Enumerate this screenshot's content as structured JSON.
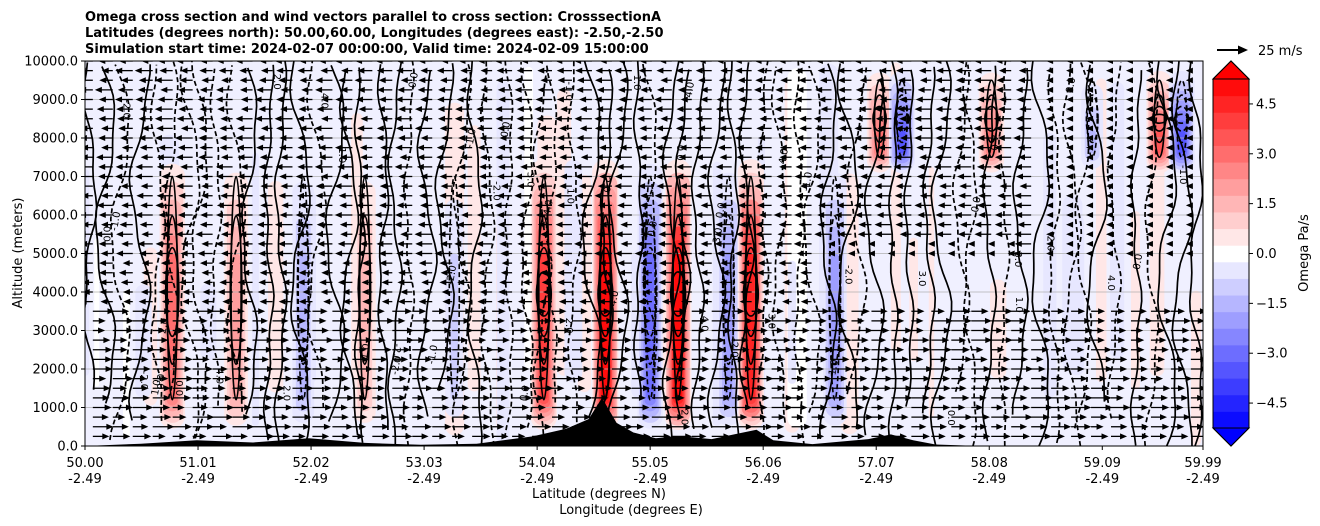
{
  "chart_data": {
    "type": "contour",
    "title_lines": [
      "Omega cross section and wind vectors parallel to cross section: CrosssectionA",
      "Latitudes (degrees north): 50.00,60.00, Longitudes (degrees east): -2.50,-2.50",
      "Simulation start time: 2024-02-07 00:00:00, Valid time: 2024-02-09 15:00:00"
    ],
    "ylabel": "Altitude (meters)",
    "xlabel_lat": "Latitude (degrees N)",
    "xlabel_lon": "Longitude (degrees E)",
    "ylim": [
      0,
      10000
    ],
    "yticks": [
      "0.0",
      "1000.0",
      "2000.0",
      "3000.0",
      "4000.0",
      "5000.0",
      "6000.0",
      "7000.0",
      "8000.0",
      "9000.0",
      "10000.0"
    ],
    "xlim": [
      50.0,
      59.99
    ],
    "xticks": [
      {
        "lat": "50.00",
        "lon": "-2.49"
      },
      {
        "lat": "51.01",
        "lon": "-2.49"
      },
      {
        "lat": "52.02",
        "lon": "-2.49"
      },
      {
        "lat": "53.03",
        "lon": "-2.49"
      },
      {
        "lat": "54.04",
        "lon": "-2.49"
      },
      {
        "lat": "55.05",
        "lon": "-2.49"
      },
      {
        "lat": "56.06",
        "lon": "-2.49"
      },
      {
        "lat": "57.07",
        "lon": "-2.49"
      },
      {
        "lat": "58.08",
        "lon": "-2.49"
      },
      {
        "lat": "59.09",
        "lon": "-2.49"
      },
      {
        "lat": "59.99",
        "lon": "-2.49"
      }
    ],
    "grid": "horizontal",
    "colorbar": {
      "label": "Omega Pa/s",
      "ticks": [
        "4.5",
        "3.0",
        "1.5",
        "0.0",
        "−1.5",
        "−3.0",
        "−4.5"
      ],
      "range": [
        -5.25,
        5.25
      ],
      "levels": 21,
      "extend": "both",
      "cmap": "bwr"
    },
    "quiver_key": {
      "label": "25 m/s"
    },
    "contour_labels": [
      "0.0",
      "1.0",
      "-1.0",
      "2.0",
      "-2.0",
      "3.0",
      "4.0"
    ],
    "features": [
      {
        "lat": 50.78,
        "kind": "down",
        "max": 3.0
      },
      {
        "lat": 51.35,
        "kind": "down",
        "max": 2.0
      },
      {
        "lat": 51.95,
        "kind": "up",
        "max": -1.5
      },
      {
        "lat": 52.5,
        "kind": "down",
        "max": 1.5
      },
      {
        "lat": 53.3,
        "kind": "up",
        "max": -1.0
      },
      {
        "lat": 54.1,
        "kind": "down",
        "max": 4.0
      },
      {
        "lat": 54.65,
        "kind": "down",
        "max": 5.0
      },
      {
        "lat": 55.05,
        "kind": "up",
        "max": -3.0
      },
      {
        "lat": 55.3,
        "kind": "down",
        "max": 5.0
      },
      {
        "lat": 55.75,
        "kind": "up",
        "max": -2.0
      },
      {
        "lat": 55.95,
        "kind": "down",
        "max": 4.5
      },
      {
        "lat": 56.7,
        "kind": "up",
        "max": -2.0
      },
      {
        "lat": 57.1,
        "kind": "down",
        "max": 3.0
      },
      {
        "lat": 57.3,
        "kind": "up",
        "max": -3.5
      },
      {
        "lat": 58.1,
        "kind": "down",
        "max": 3.0
      },
      {
        "lat": 59.0,
        "kind": "up",
        "max": -1.5
      },
      {
        "lat": 59.6,
        "kind": "down",
        "max": 3.5
      },
      {
        "lat": 59.8,
        "kind": "up",
        "max": -3.5
      }
    ]
  }
}
